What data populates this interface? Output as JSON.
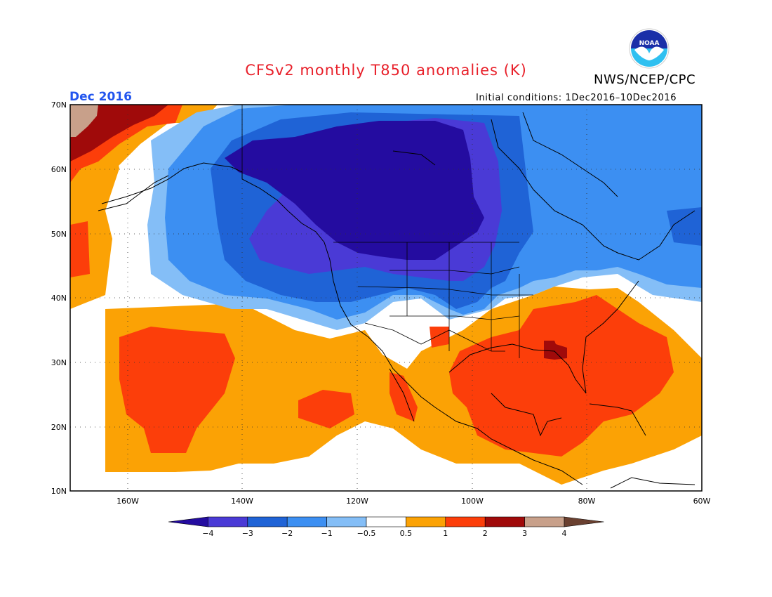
{
  "header": {
    "title": "CFSv2 monthly T850 anomalies (K)",
    "agency": "NWS/NCEP/CPC",
    "logo_text": "NOAA",
    "month": "Dec 2016",
    "initial_conditions": "Initial conditions: 1Dec2016–10Dec2016"
  },
  "map": {
    "lon_range": [
      -170,
      -60
    ],
    "lat_range": [
      10,
      70
    ],
    "lat_ticks": [
      {
        "value": 70,
        "label": "70N"
      },
      {
        "value": 60,
        "label": "60N"
      },
      {
        "value": 50,
        "label": "50N"
      },
      {
        "value": 40,
        "label": "40N"
      },
      {
        "value": 30,
        "label": "30N"
      },
      {
        "value": 20,
        "label": "20N"
      },
      {
        "value": 10,
        "label": "10N"
      }
    ],
    "lon_ticks": [
      {
        "value": -160,
        "label": "160W"
      },
      {
        "value": -140,
        "label": "140W"
      },
      {
        "value": -120,
        "label": "120W"
      },
      {
        "value": -100,
        "label": "100W"
      },
      {
        "value": -80,
        "label": "80W"
      },
      {
        "value": -60,
        "label": "60W"
      }
    ],
    "anomaly_regions": [
      {
        "name": "cold-canada-core",
        "level": "<-4"
      },
      {
        "name": "cold-northeast-pacific",
        "level": "-3"
      },
      {
        "name": "warm-southeast-us",
        "level": "2"
      },
      {
        "name": "warm-central-pacific",
        "level": "2"
      },
      {
        "name": "warm-southeast-georgia",
        "level": "3"
      },
      {
        "name": "warm-arctic-chukchi",
        "level": "4"
      }
    ]
  },
  "colorbar": {
    "colors": [
      "#240ca0",
      "#4a3ad6",
      "#1f63d6",
      "#3c8ff2",
      "#84bef7",
      "#ffffff",
      "#fba205",
      "#fc3e0a",
      "#a00a0a",
      "#c8a08a",
      "#6a4030"
    ],
    "labels": [
      "−4",
      "−3",
      "−2",
      "−1",
      "−0.5",
      "0.5",
      "1",
      "2",
      "3",
      "4"
    ]
  }
}
